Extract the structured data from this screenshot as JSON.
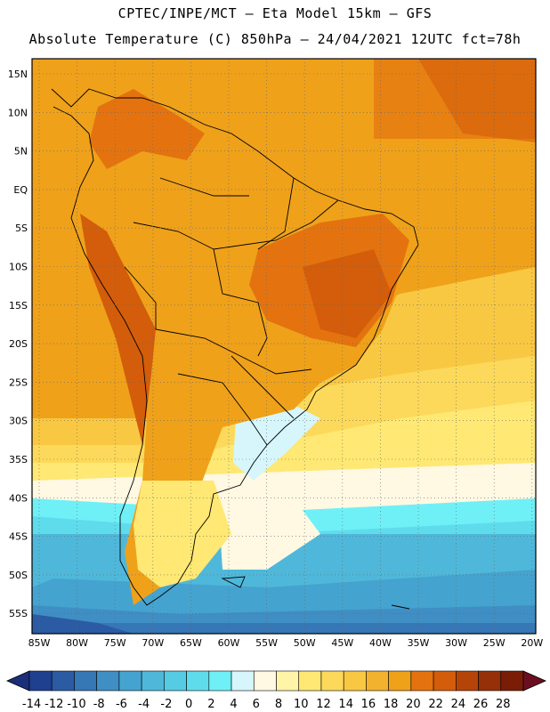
{
  "header": {
    "line1": "CPTEC/INPE/MCT –  Eta Model 15km – GFS",
    "line2": "Absolute Temperature (C) 850hPa – 24/04/2021 12UTC fct=78h"
  },
  "map": {
    "lat_labels": [
      "15N",
      "10N",
      "5N",
      "EQ",
      "5S",
      "10S",
      "15S",
      "20S",
      "25S",
      "30S",
      "35S",
      "40S",
      "45S",
      "50S",
      "55S"
    ],
    "lon_labels": [
      "85W",
      "80W",
      "75W",
      "70W",
      "65W",
      "60W",
      "55W",
      "50W",
      "45W",
      "40W",
      "35W",
      "30W",
      "25W",
      "20W"
    ]
  },
  "colorbar": {
    "ticks": [
      "-14",
      "-12",
      "-10",
      "-8",
      "-6",
      "-4",
      "-2",
      "0",
      "2",
      "4",
      "6",
      "8",
      "10",
      "12",
      "14",
      "16",
      "18",
      "20",
      "22",
      "24",
      "26",
      "28"
    ],
    "colors": [
      "#1f3f8f",
      "#2b5ba3",
      "#3677b5",
      "#3f8ec4",
      "#45a3cf",
      "#4fb8da",
      "#56cbe4",
      "#5fdcec",
      "#6ff0f6",
      "#d6f6fb",
      "#fff8e3",
      "#fff4a8",
      "#ffe873",
      "#fcd95a",
      "#f9c843",
      "#f3b22d",
      "#efa11a",
      "#e4730f",
      "#d35d0a",
      "#b54409",
      "#963008",
      "#7a1d06"
    ],
    "under_color": "#1a2e7a",
    "over_color": "#6b0f20"
  }
}
